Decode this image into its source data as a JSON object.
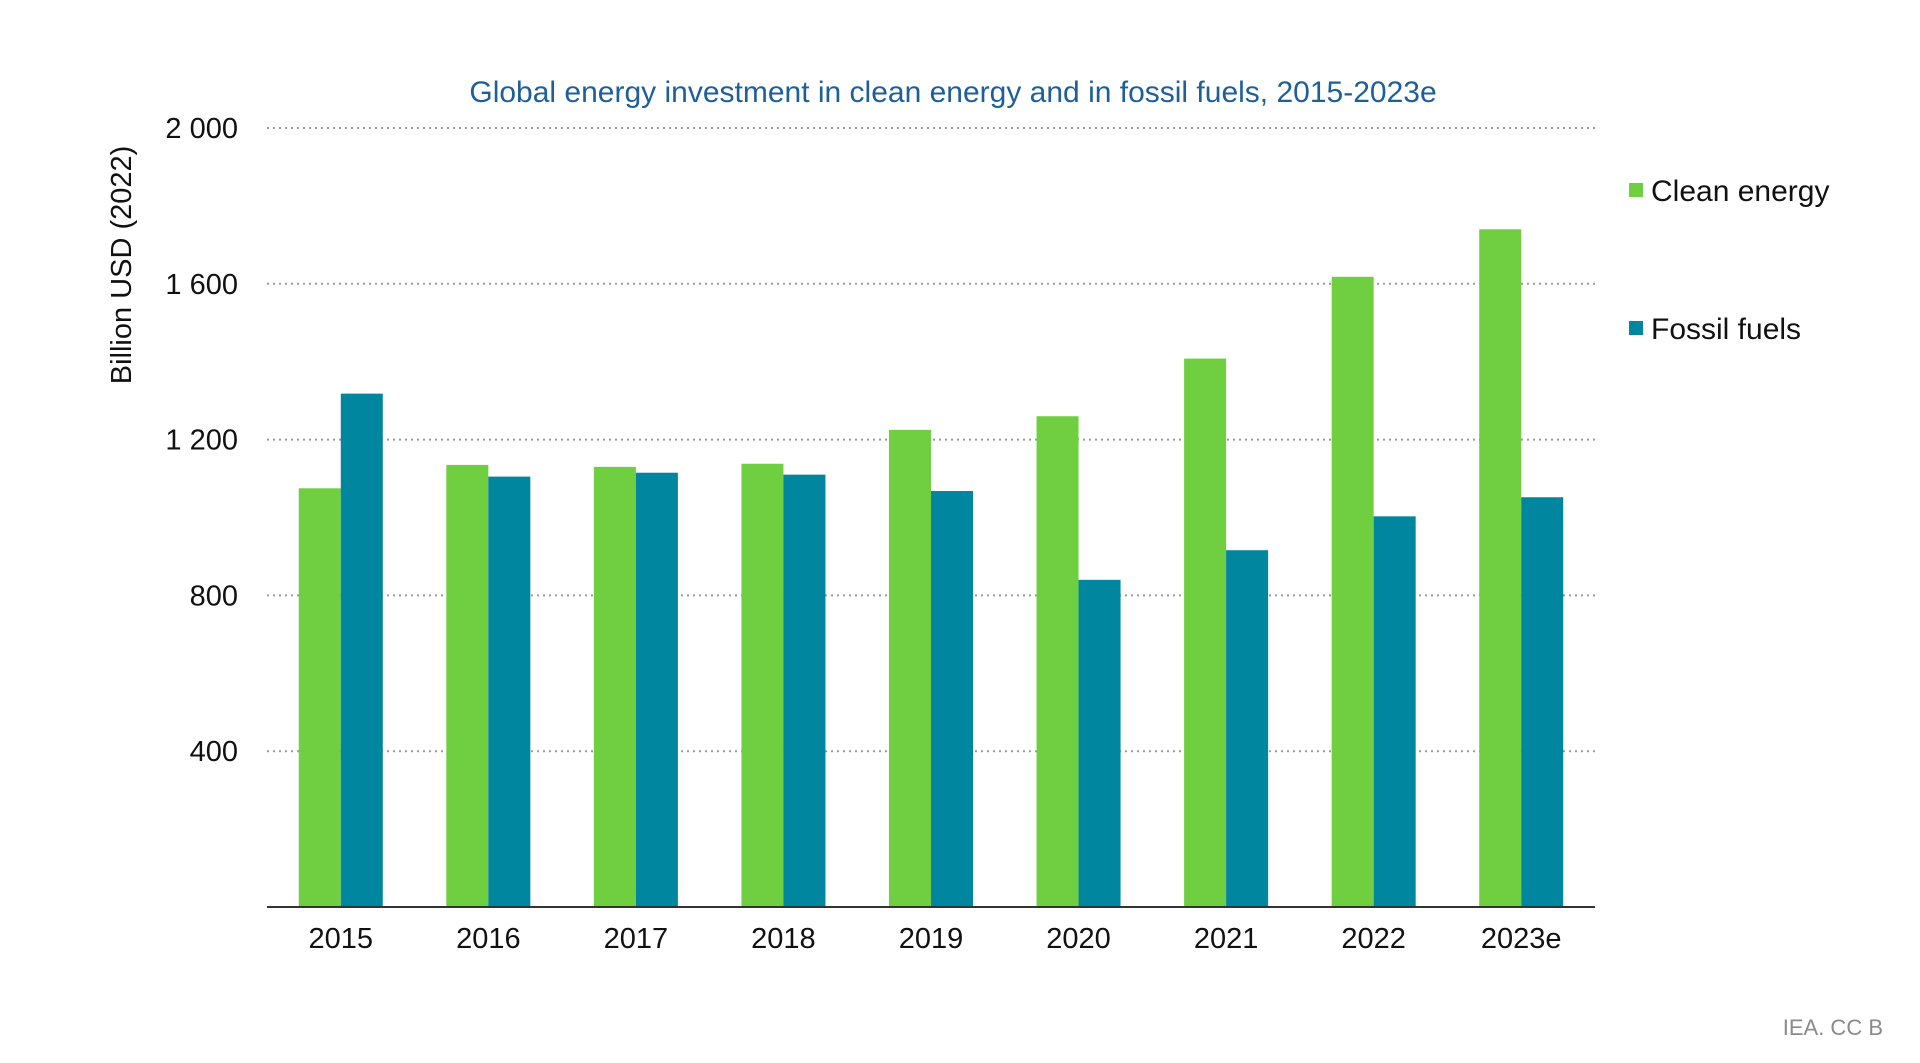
{
  "chart_data": {
    "type": "bar",
    "title": "Global energy investment in clean energy and in fossil fuels, 2015-2023e",
    "ylabel": "Billion USD (2022)",
    "xlabel": "",
    "categories": [
      "2015",
      "2016",
      "2017",
      "2018",
      "2019",
      "2020",
      "2021",
      "2022",
      "2023e"
    ],
    "series": [
      {
        "name": "Clean energy",
        "color": "#6fcf40",
        "values": [
          1075,
          1135,
          1130,
          1138,
          1225,
          1260,
          1408,
          1618,
          1740
        ]
      },
      {
        "name": "Fossil fuels",
        "color": "#00869e",
        "values": [
          1318,
          1105,
          1115,
          1110,
          1068,
          840,
          916,
          1003,
          1052
        ]
      }
    ],
    "ylim": [
      0,
      2000
    ],
    "yticks": [
      400,
      800,
      1200,
      1600,
      2000
    ],
    "ytick_labels": [
      "400",
      "800",
      "1 200",
      "1 600",
      "2 000"
    ],
    "grid": true,
    "legend_position": "right"
  },
  "source": "IEA. CC B"
}
